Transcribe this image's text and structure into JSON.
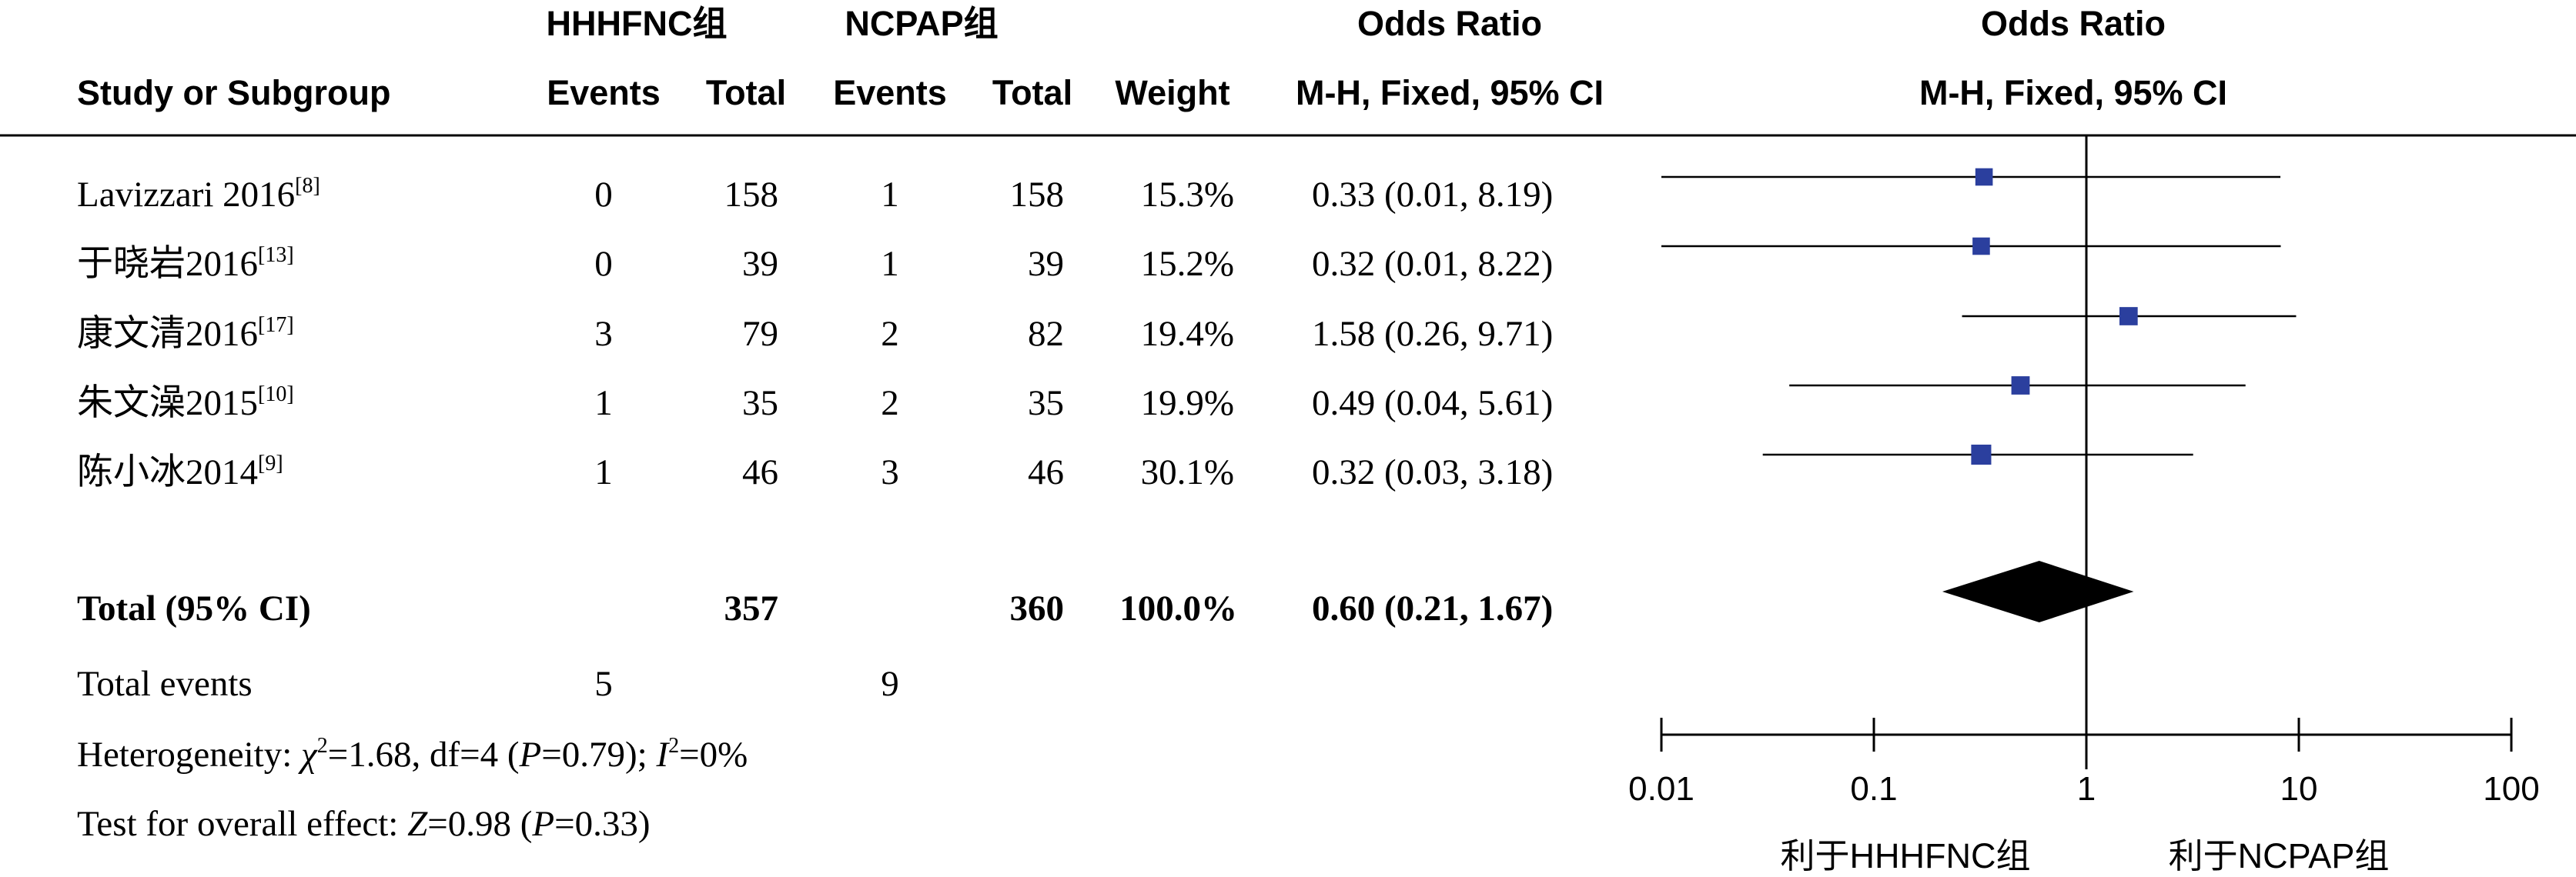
{
  "header": {
    "group1": "HHHFNC组",
    "group2": "NCPAP组",
    "or_title_left": "Odds Ratio",
    "or_title_right": "Odds Ratio",
    "study_col": "Study or Subgroup",
    "events1": "Events",
    "total1": "Total",
    "events2": "Events",
    "total2": "Total",
    "weight": "Weight",
    "method_left": "M-H, Fixed, 95% CI",
    "method_right": "M-H, Fixed, 95% CI"
  },
  "studies": [
    {
      "name": "Lavizzari 2016",
      "ref": "[8]",
      "e1": "0",
      "n1": "158",
      "e2": "1",
      "n2": "158",
      "weight": "15.3%",
      "ci_text": "0.33 (0.01, 8.19)"
    },
    {
      "name": "于晓岩2016",
      "ref": "[13]",
      "e1": "0",
      "n1": "39",
      "e2": "1",
      "n2": "39",
      "weight": "15.2%",
      "ci_text": "0.32 (0.01, 8.22)"
    },
    {
      "name": "康文清2016",
      "ref": "[17]",
      "e1": "3",
      "n1": "79",
      "e2": "2",
      "n2": "82",
      "weight": "19.4%",
      "ci_text": "1.58 (0.26, 9.71)"
    },
    {
      "name": "朱文澡2015",
      "ref": "[10]",
      "e1": "1",
      "n1": "35",
      "e2": "2",
      "n2": "35",
      "weight": "19.9%",
      "ci_text": "0.49 (0.04, 5.61)"
    },
    {
      "name": "陈小冰2014",
      "ref": "[9]",
      "e1": "1",
      "n1": "46",
      "e2": "3",
      "n2": "46",
      "weight": "30.1%",
      "ci_text": "0.32 (0.03, 3.18)"
    }
  ],
  "total": {
    "label": "Total (95% CI)",
    "n1": "357",
    "n2": "360",
    "weight": "100.0%",
    "ci_text": "0.60 (0.21, 1.67)"
  },
  "total_events": {
    "label": "Total events",
    "e1": "5",
    "e2": "9"
  },
  "heterogeneity": {
    "prefix": "Heterogeneity: ",
    "chi": "χ",
    "chi_rest": "=1.68, df=4 (",
    "p": "P",
    "p_rest": "=0.79); ",
    "i": "I",
    "i_rest": "=0%"
  },
  "overall": {
    "prefix": "Test for overall effect: ",
    "z": "Z",
    "z_rest": "=0.98 (",
    "p": "P",
    "p_rest": "=0.33)"
  },
  "chart_data": {
    "type": "forest",
    "scale": "log",
    "xlim": [
      0.01,
      100
    ],
    "x_ticks": [
      "0.01",
      "0.1",
      "1",
      "10",
      "100"
    ],
    "x_tick_values": [
      0.01,
      0.1,
      1,
      10,
      100
    ],
    "favours_left": "利于HHHFNC组",
    "favours_right": "利于NCPAP组",
    "marker_color": "#2b3f9e",
    "diamond_color": "#000000",
    "studies": [
      {
        "or": 0.33,
        "lo": 0.01,
        "hi": 8.19,
        "weight": 15.3
      },
      {
        "or": 0.32,
        "lo": 0.01,
        "hi": 8.22,
        "weight": 15.2
      },
      {
        "or": 1.58,
        "lo": 0.26,
        "hi": 9.71,
        "weight": 19.4
      },
      {
        "or": 0.49,
        "lo": 0.04,
        "hi": 5.61,
        "weight": 19.9
      },
      {
        "or": 0.32,
        "lo": 0.03,
        "hi": 3.18,
        "weight": 30.1
      }
    ],
    "pooled": {
      "or": 0.6,
      "lo": 0.21,
      "hi": 1.67
    }
  }
}
